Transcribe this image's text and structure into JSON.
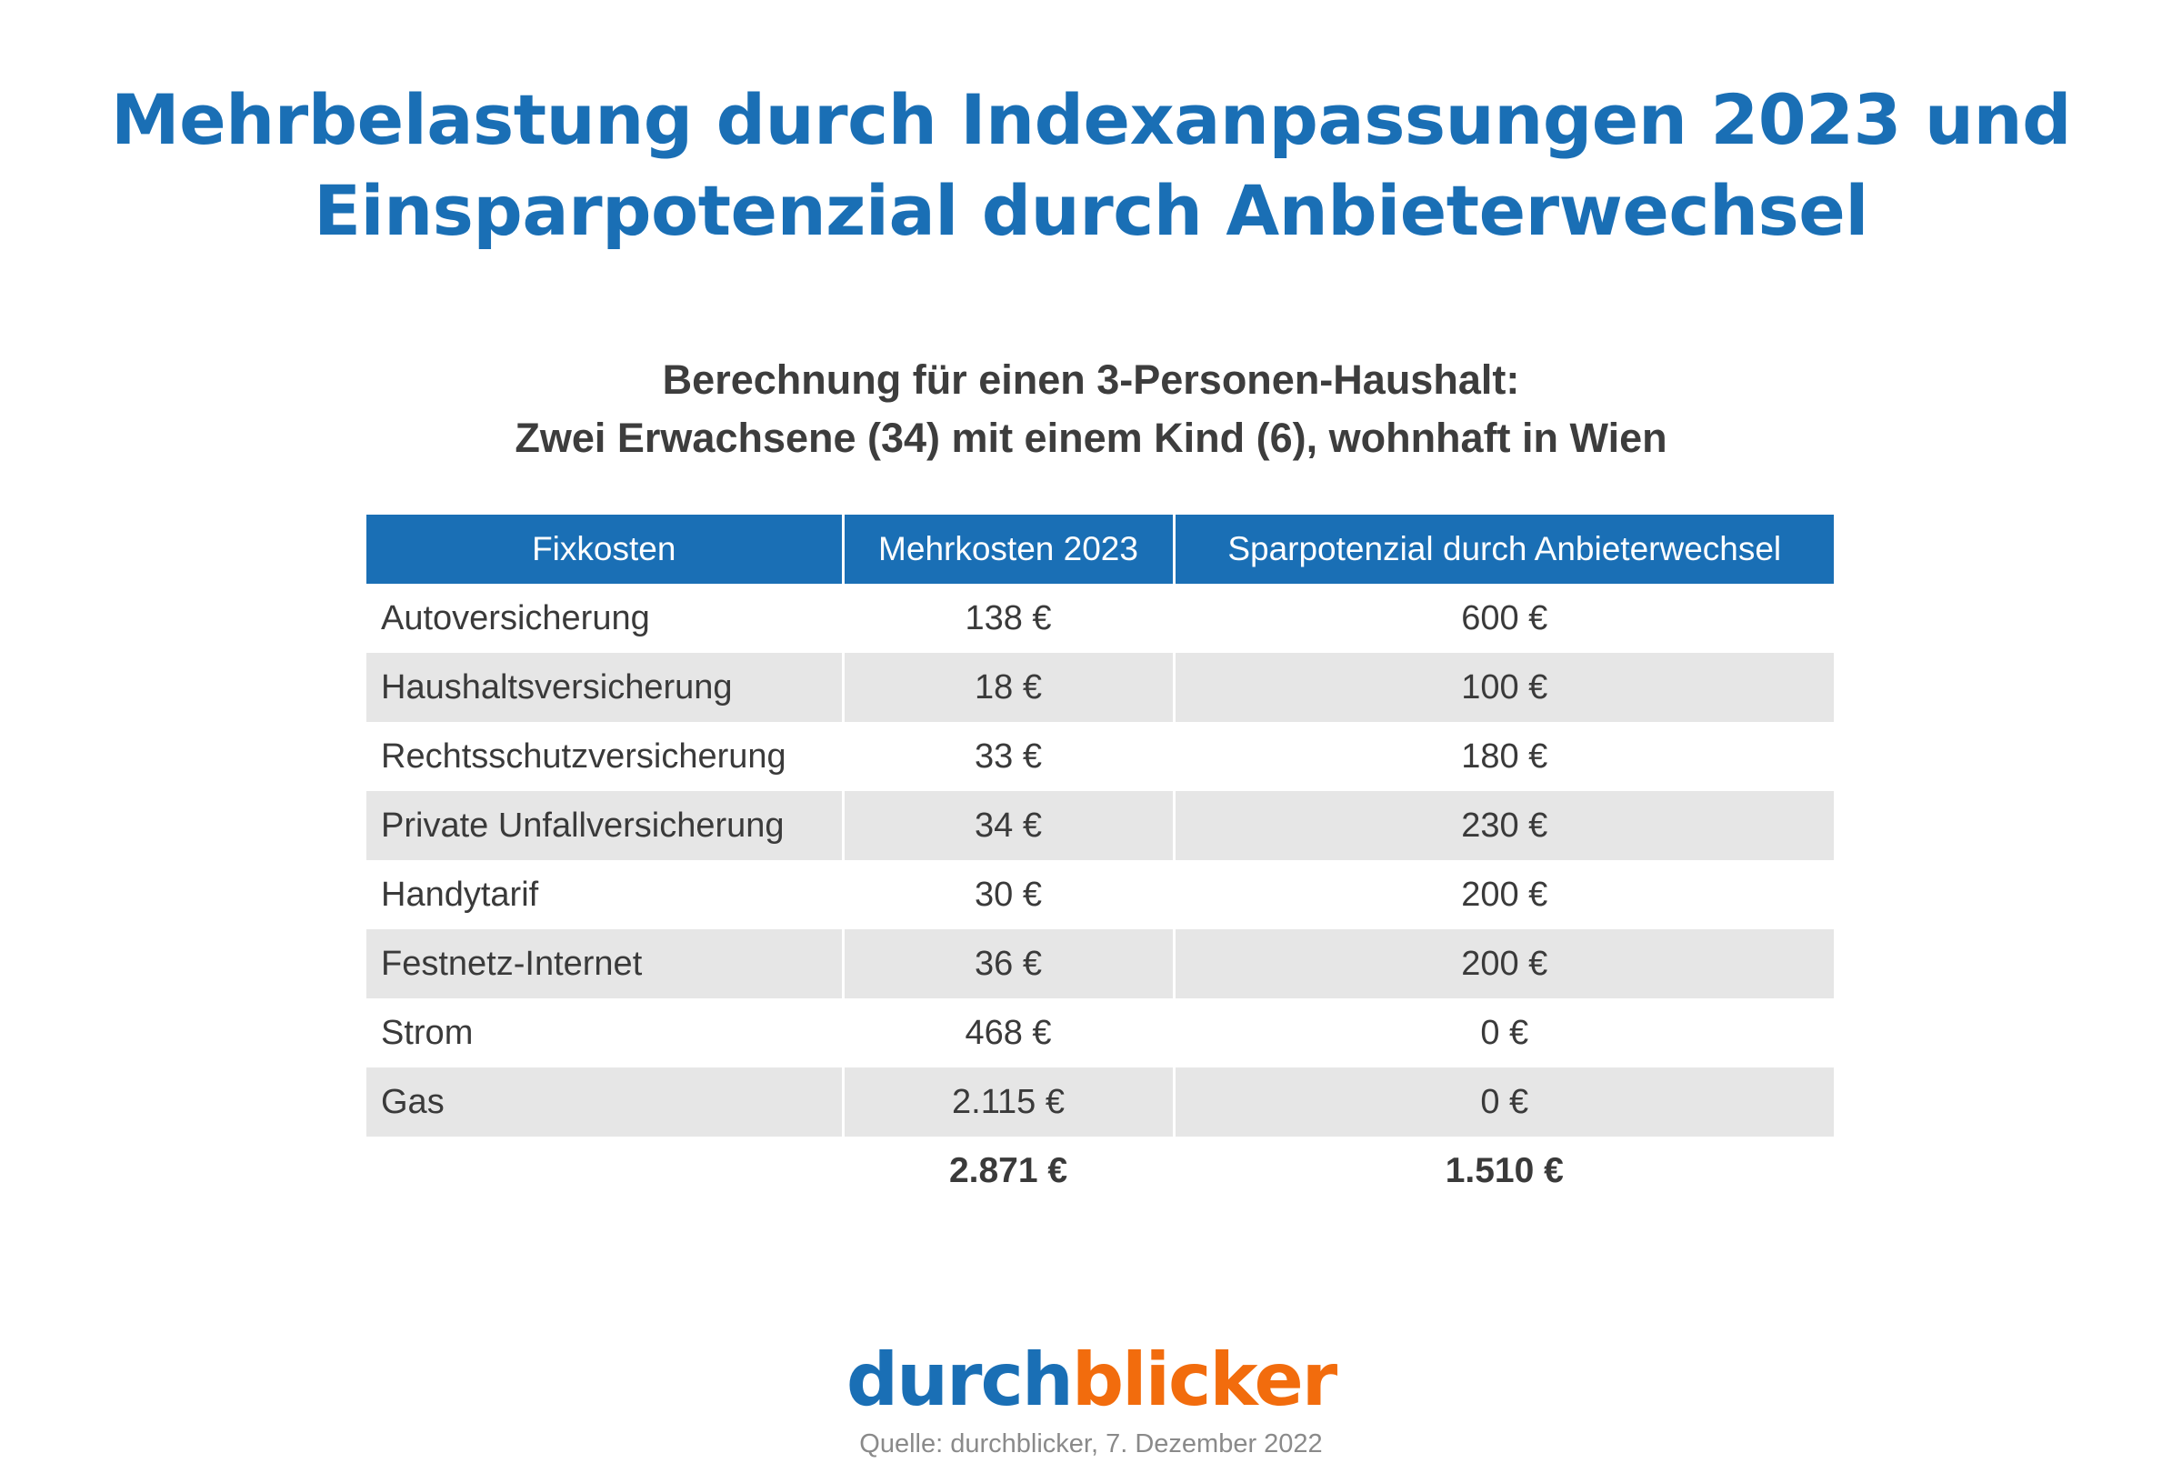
{
  "title": {
    "line1": "Mehrbelastung durch Indexanpassungen 2023 und",
    "line2": "Einsparpotenzial durch Anbieterwechsel"
  },
  "subtitle": {
    "line1": "Berechnung für einen 3-Personen-Haushalt:",
    "line2": "Zwei Erwachsene (34) mit einem Kind (6), wohnhaft in Wien"
  },
  "chart_data": {
    "type": "table",
    "columns": [
      "Fixkosten",
      "Mehrkosten 2023",
      "Sparpotenzial durch Anbieterwechsel"
    ],
    "rows": [
      {
        "label": "Autoversicherung",
        "mehrkosten": "138 €",
        "sparpotenzial": "600 €"
      },
      {
        "label": "Haushaltsversicherung",
        "mehrkosten": "18 €",
        "sparpotenzial": "100 €"
      },
      {
        "label": "Rechtsschutzversicherung",
        "mehrkosten": "33 €",
        "sparpotenzial": "180 €"
      },
      {
        "label": "Private Unfallversicherung",
        "mehrkosten": "34 €",
        "sparpotenzial": "230 €"
      },
      {
        "label": "Handytarif",
        "mehrkosten": "30 €",
        "sparpotenzial": "200 €"
      },
      {
        "label": "Festnetz-Internet",
        "mehrkosten": "36 €",
        "sparpotenzial": "200 €"
      },
      {
        "label": "Strom",
        "mehrkosten": "468 €",
        "sparpotenzial": "0 €"
      },
      {
        "label": "Gas",
        "mehrkosten": "2.115 €",
        "sparpotenzial": "0 €"
      }
    ],
    "totals": {
      "mehrkosten": "2.871 €",
      "sparpotenzial": "1.510 €"
    }
  },
  "colors": {
    "header_blue": "#1a6fb5",
    "row_shade": "#e6e6e6",
    "logo_orange": "#f26c0d"
  },
  "logo": {
    "part1": "durch",
    "part2": "blicker"
  },
  "source": "Quelle: durchblicker, 7. Dezember 2022"
}
